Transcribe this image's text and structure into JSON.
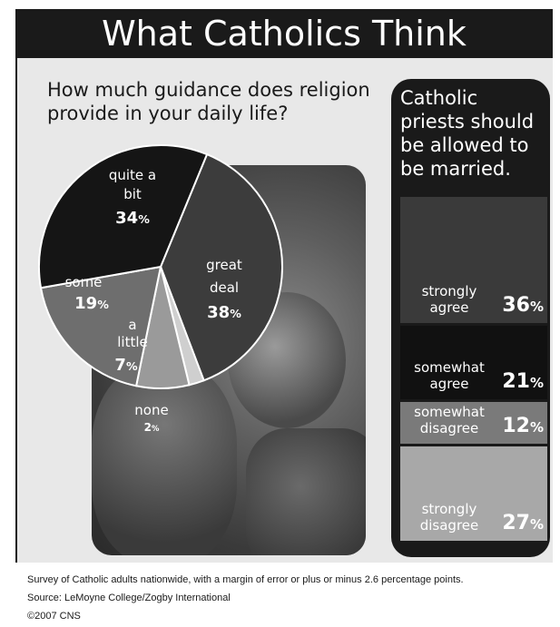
{
  "title": "What Catholics Think",
  "pie": {
    "question": "How much guidance does religion provide in your daily life?"
  },
  "bars": {
    "question": "Catholic priests should be allowed to be married."
  },
  "chart_data": [
    {
      "type": "pie",
      "title": "How much guidance does religion provide in your daily life?",
      "slices": [
        {
          "label": "great deal",
          "value": 38,
          "color": "#3c3c3c"
        },
        {
          "label": "none",
          "value": 2,
          "color": "#cfcfcf"
        },
        {
          "label": "a little",
          "value": 7,
          "color": "#9a9a9a"
        },
        {
          "label": "some",
          "value": 19,
          "color": "#6e6e6e"
        },
        {
          "label": "quite a bit",
          "value": 34,
          "color": "#151515"
        }
      ],
      "unit": "%"
    },
    {
      "type": "bar",
      "title": "Catholic priests should be allowed to be married.",
      "categories": [
        "strongly agree",
        "somewhat agree",
        "somewhat disagree",
        "strongly disagree"
      ],
      "values": [
        36,
        21,
        12,
        27
      ],
      "colors": [
        "#3a3a3a",
        "#111111",
        "#7a7a7a",
        "#a8a8a8"
      ],
      "unit": "%"
    }
  ],
  "footer": {
    "survey": "Survey of Catholic adults nationwide, with a margin of error or plus or minus 2.6 percentage points.",
    "source": "Source: LeMoyne College/Zogby International",
    "copyright": "©2007 CNS"
  }
}
